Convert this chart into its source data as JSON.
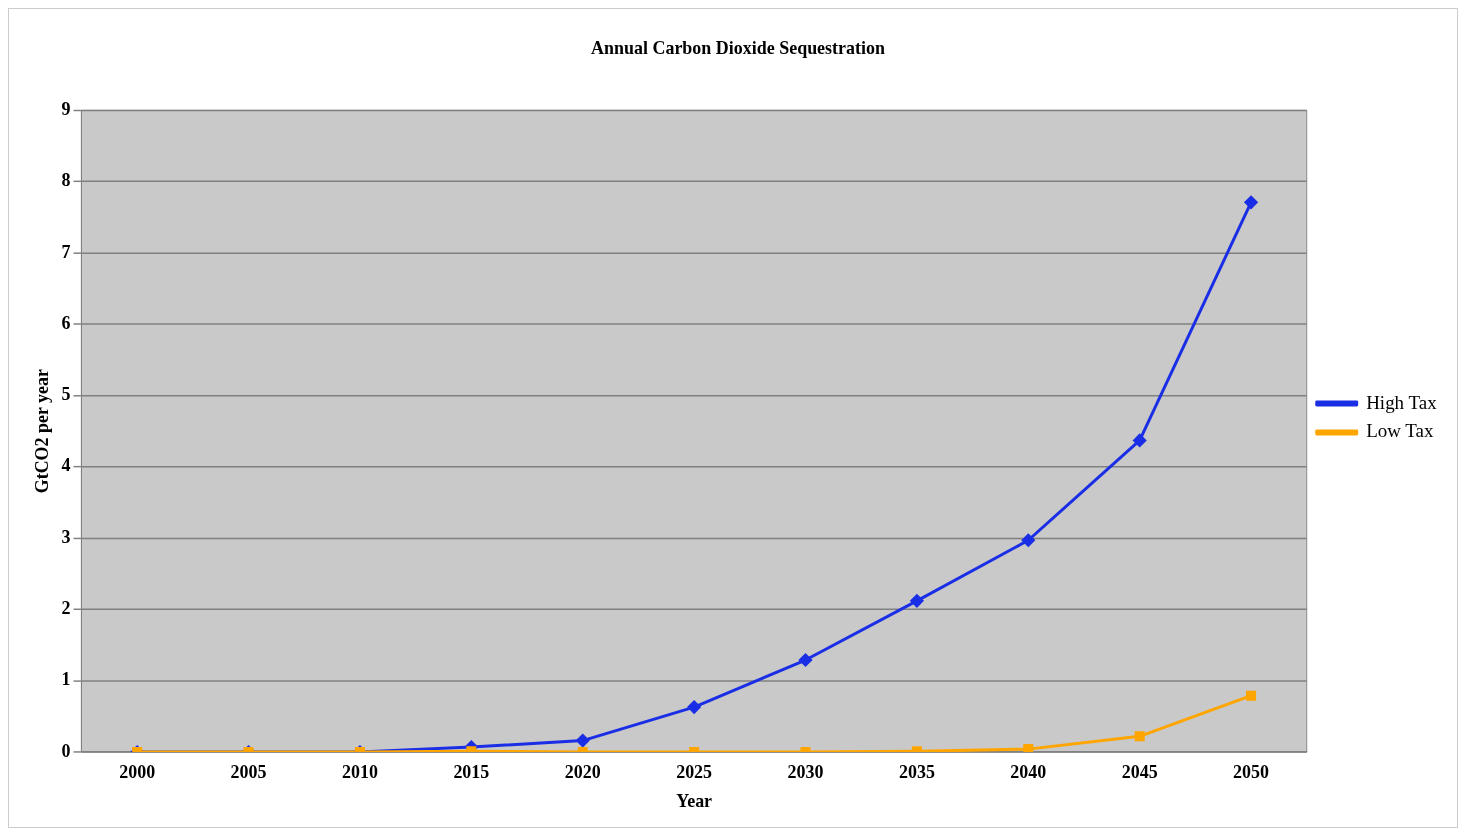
{
  "chart_data": {
    "type": "line",
    "title": "Annual Carbon Dioxide Sequestration",
    "xlabel": "Year",
    "ylabel": "GtCO2 per year",
    "categories": [
      "2000",
      "2005",
      "2010",
      "2015",
      "2020",
      "2025",
      "2030",
      "2035",
      "2040",
      "2045",
      "2050"
    ],
    "series": [
      {
        "name": "High Tax",
        "color": "#1a2ee6",
        "marker": "diamond",
        "values": [
          0,
          0,
          0,
          0.07,
          0.16,
          0.63,
          1.29,
          2.12,
          2.97,
          4.37,
          7.71
        ]
      },
      {
        "name": "Low Tax",
        "color": "#ffa500",
        "marker": "square",
        "values": [
          0,
          0,
          0,
          0.01,
          0,
          0,
          0,
          0.01,
          0.04,
          0.22,
          0.79
        ]
      }
    ],
    "ylim": [
      0,
      9
    ],
    "yticks": [
      0,
      1,
      2,
      3,
      4,
      5,
      6,
      7,
      8,
      9
    ],
    "grid": "y",
    "legend": "right",
    "line_style": "solid"
  }
}
